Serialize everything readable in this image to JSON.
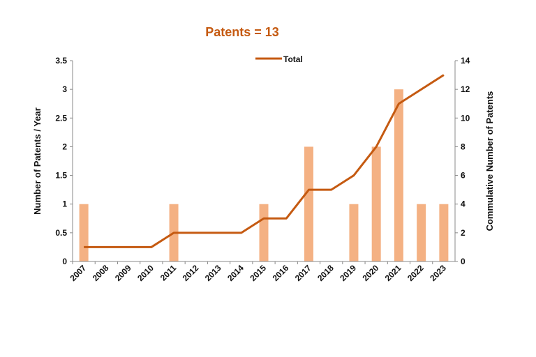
{
  "chart_data": {
    "type": "bar+line",
    "title": "Patents = 13",
    "categories": [
      "2007",
      "2008",
      "2009",
      "2010",
      "2011",
      "2012",
      "2013",
      "2014",
      "2015",
      "2016",
      "2017",
      "2018",
      "2019",
      "2020",
      "2021",
      "2022",
      "2023"
    ],
    "series": [
      {
        "type": "bar",
        "axis": "left",
        "values": [
          1,
          0,
          0,
          0,
          1,
          0,
          0,
          0,
          1,
          0,
          2,
          0,
          1,
          2,
          3,
          1,
          1
        ],
        "color": "#F4B183"
      },
      {
        "type": "line",
        "axis": "right",
        "name": "Total",
        "values": [
          1,
          1,
          1,
          1,
          2,
          2,
          2,
          2,
          3,
          3,
          5,
          5,
          6,
          8,
          11,
          12,
          13
        ],
        "color": "#C55A11"
      }
    ],
    "ylabel": "Number of Patents / Year",
    "y2label": "Commulative Number of Patents",
    "ylim": [
      0,
      3.5
    ],
    "y2lim": [
      0,
      14
    ],
    "yticks": [
      "0",
      "0.5",
      "1",
      "1.5",
      "2",
      "2.5",
      "3",
      "3.5"
    ],
    "y2ticks": [
      "0",
      "2",
      "4",
      "6",
      "8",
      "10",
      "12",
      "14"
    ],
    "grid": false,
    "legend": "top-center",
    "title_color": "#C55A11"
  }
}
